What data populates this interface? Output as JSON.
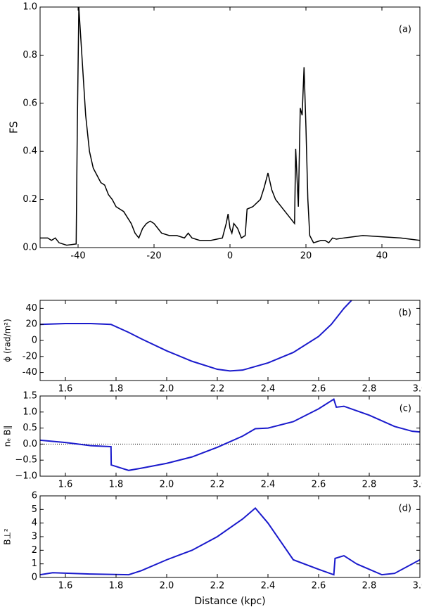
{
  "chart_data": [
    {
      "type": "line",
      "ylabel": "FS",
      "annotation": "(a)",
      "color": "#000000",
      "xlim": [
        -50,
        50
      ],
      "xticks": [
        -40,
        -20,
        0,
        20,
        40
      ],
      "ylim": [
        0,
        1
      ],
      "yticks": [
        {
          "value": 0,
          "label": "0.0"
        },
        {
          "value": 0.2,
          "label": "0.2"
        },
        {
          "value": 0.4,
          "label": "0.4"
        },
        {
          "value": 0.6,
          "label": "0.6"
        },
        {
          "value": 0.8,
          "label": "0.8"
        },
        {
          "value": 1,
          "label": "1.0"
        }
      ],
      "x": [
        -50,
        -48,
        -47,
        -46,
        -45,
        -43,
        -40.5,
        -40.2,
        -39.8,
        -39,
        -38,
        -37,
        -36,
        -35,
        -34,
        -33,
        -32,
        -31,
        -30,
        -28,
        -26,
        -25,
        -24,
        -23,
        -22,
        -21,
        -20,
        -19,
        -18,
        -16,
        -14,
        -12,
        -11,
        -10,
        -8,
        -5,
        -2,
        -1,
        -0.5,
        0,
        0.5,
        1,
        2,
        3,
        4,
        4.5,
        6,
        8,
        9,
        10,
        11,
        12,
        14,
        16,
        17,
        17.3,
        18,
        18.5,
        19,
        19.5,
        20,
        20.5,
        21,
        22,
        24,
        25,
        26,
        27,
        28,
        30,
        35,
        40,
        45,
        50
      ],
      "values": [
        0.04,
        0.04,
        0.03,
        0.04,
        0.02,
        0.01,
        0.015,
        0.5,
        1.0,
        0.8,
        0.55,
        0.4,
        0.33,
        0.3,
        0.27,
        0.26,
        0.22,
        0.2,
        0.17,
        0.15,
        0.1,
        0.06,
        0.04,
        0.08,
        0.1,
        0.11,
        0.1,
        0.08,
        0.06,
        0.05,
        0.05,
        0.04,
        0.06,
        0.04,
        0.03,
        0.03,
        0.04,
        0.1,
        0.14,
        0.08,
        0.06,
        0.1,
        0.08,
        0.04,
        0.05,
        0.16,
        0.17,
        0.2,
        0.25,
        0.31,
        0.24,
        0.2,
        0.16,
        0.12,
        0.1,
        0.41,
        0.17,
        0.58,
        0.55,
        0.75,
        0.5,
        0.2,
        0.05,
        0.02,
        0.03,
        0.03,
        0.02,
        0.04,
        0.035,
        0.04,
        0.05,
        0.045,
        0.04,
        0.03
      ]
    },
    {
      "type": "line",
      "ylabel": "ϕ (rad/m²)",
      "annotation": "(b)",
      "color": "#1a1acc",
      "xlim": [
        1.5,
        3.0
      ],
      "xticks": [
        1.6,
        1.8,
        {
          "value": 2,
          "label": "2.0"
        },
        2.2,
        2.4,
        2.6,
        2.8,
        {
          "value": 3,
          "label": "3.0"
        }
      ],
      "ylim": [
        -50,
        50
      ],
      "yticks": [
        -40,
        -20,
        0,
        20,
        40
      ],
      "x": [
        1.5,
        1.6,
        1.7,
        1.78,
        1.85,
        1.9,
        2.0,
        2.1,
        2.2,
        2.25,
        2.3,
        2.4,
        2.5,
        2.6,
        2.65,
        2.7,
        2.73
      ],
      "values": [
        20,
        21,
        21,
        20,
        10,
        2,
        -13,
        -26,
        -36,
        -38,
        -37,
        -28,
        -15,
        5,
        20,
        40,
        50
      ]
    },
    {
      "type": "line",
      "ylabel": "nₑ B∥",
      "annotation": "(c)",
      "color": "#1a1acc",
      "hline": 0,
      "xlim": [
        1.5,
        3.0
      ],
      "xticks": [
        1.6,
        1.8,
        {
          "value": 2,
          "label": "2.0"
        },
        2.2,
        2.4,
        2.6,
        2.8,
        {
          "value": 3,
          "label": "3.0"
        }
      ],
      "ylim": [
        -1,
        1.5
      ],
      "yticks": [
        {
          "value": -1,
          "label": "−1.0"
        },
        {
          "value": -0.5,
          "label": "−0.5"
        },
        {
          "value": 0,
          "label": "0.0"
        },
        0.5,
        {
          "value": 1,
          "label": "1.0"
        },
        1.5
      ],
      "x": [
        1.5,
        1.6,
        1.7,
        1.78,
        1.781,
        1.85,
        1.9,
        2.0,
        2.1,
        2.2,
        2.3,
        2.35,
        2.4,
        2.5,
        2.6,
        2.66,
        2.67,
        2.7,
        2.8,
        2.9,
        2.97,
        3.0
      ],
      "values": [
        0.12,
        0.05,
        -0.05,
        -0.08,
        -0.65,
        -0.82,
        -0.75,
        -0.6,
        -0.4,
        -0.1,
        0.25,
        0.48,
        0.5,
        0.7,
        1.1,
        1.4,
        1.15,
        1.18,
        0.9,
        0.55,
        0.4,
        0.38
      ]
    },
    {
      "type": "line",
      "ylabel": "B⊥²",
      "xlabel": "Distance (kpc)",
      "annotation": "(d)",
      "color": "#1a1acc",
      "xlim": [
        1.5,
        3.0
      ],
      "xticks": [
        1.6,
        1.8,
        {
          "value": 2,
          "label": "2.0"
        },
        2.2,
        2.4,
        2.6,
        2.8,
        {
          "value": 3,
          "label": "3.0"
        }
      ],
      "ylim": [
        0,
        6
      ],
      "yticks": [
        0,
        1,
        2,
        3,
        4,
        5,
        6
      ],
      "x": [
        1.5,
        1.55,
        1.7,
        1.85,
        1.9,
        2.0,
        2.1,
        2.2,
        2.3,
        2.35,
        2.4,
        2.5,
        2.6,
        2.66,
        2.665,
        2.7,
        2.75,
        2.85,
        2.9,
        3.0
      ],
      "values": [
        0.2,
        0.35,
        0.25,
        0.2,
        0.5,
        1.3,
        2.0,
        3.0,
        4.3,
        5.1,
        4.0,
        1.3,
        0.6,
        0.2,
        1.4,
        1.6,
        1.0,
        0.2,
        0.3,
        1.3
      ]
    }
  ]
}
